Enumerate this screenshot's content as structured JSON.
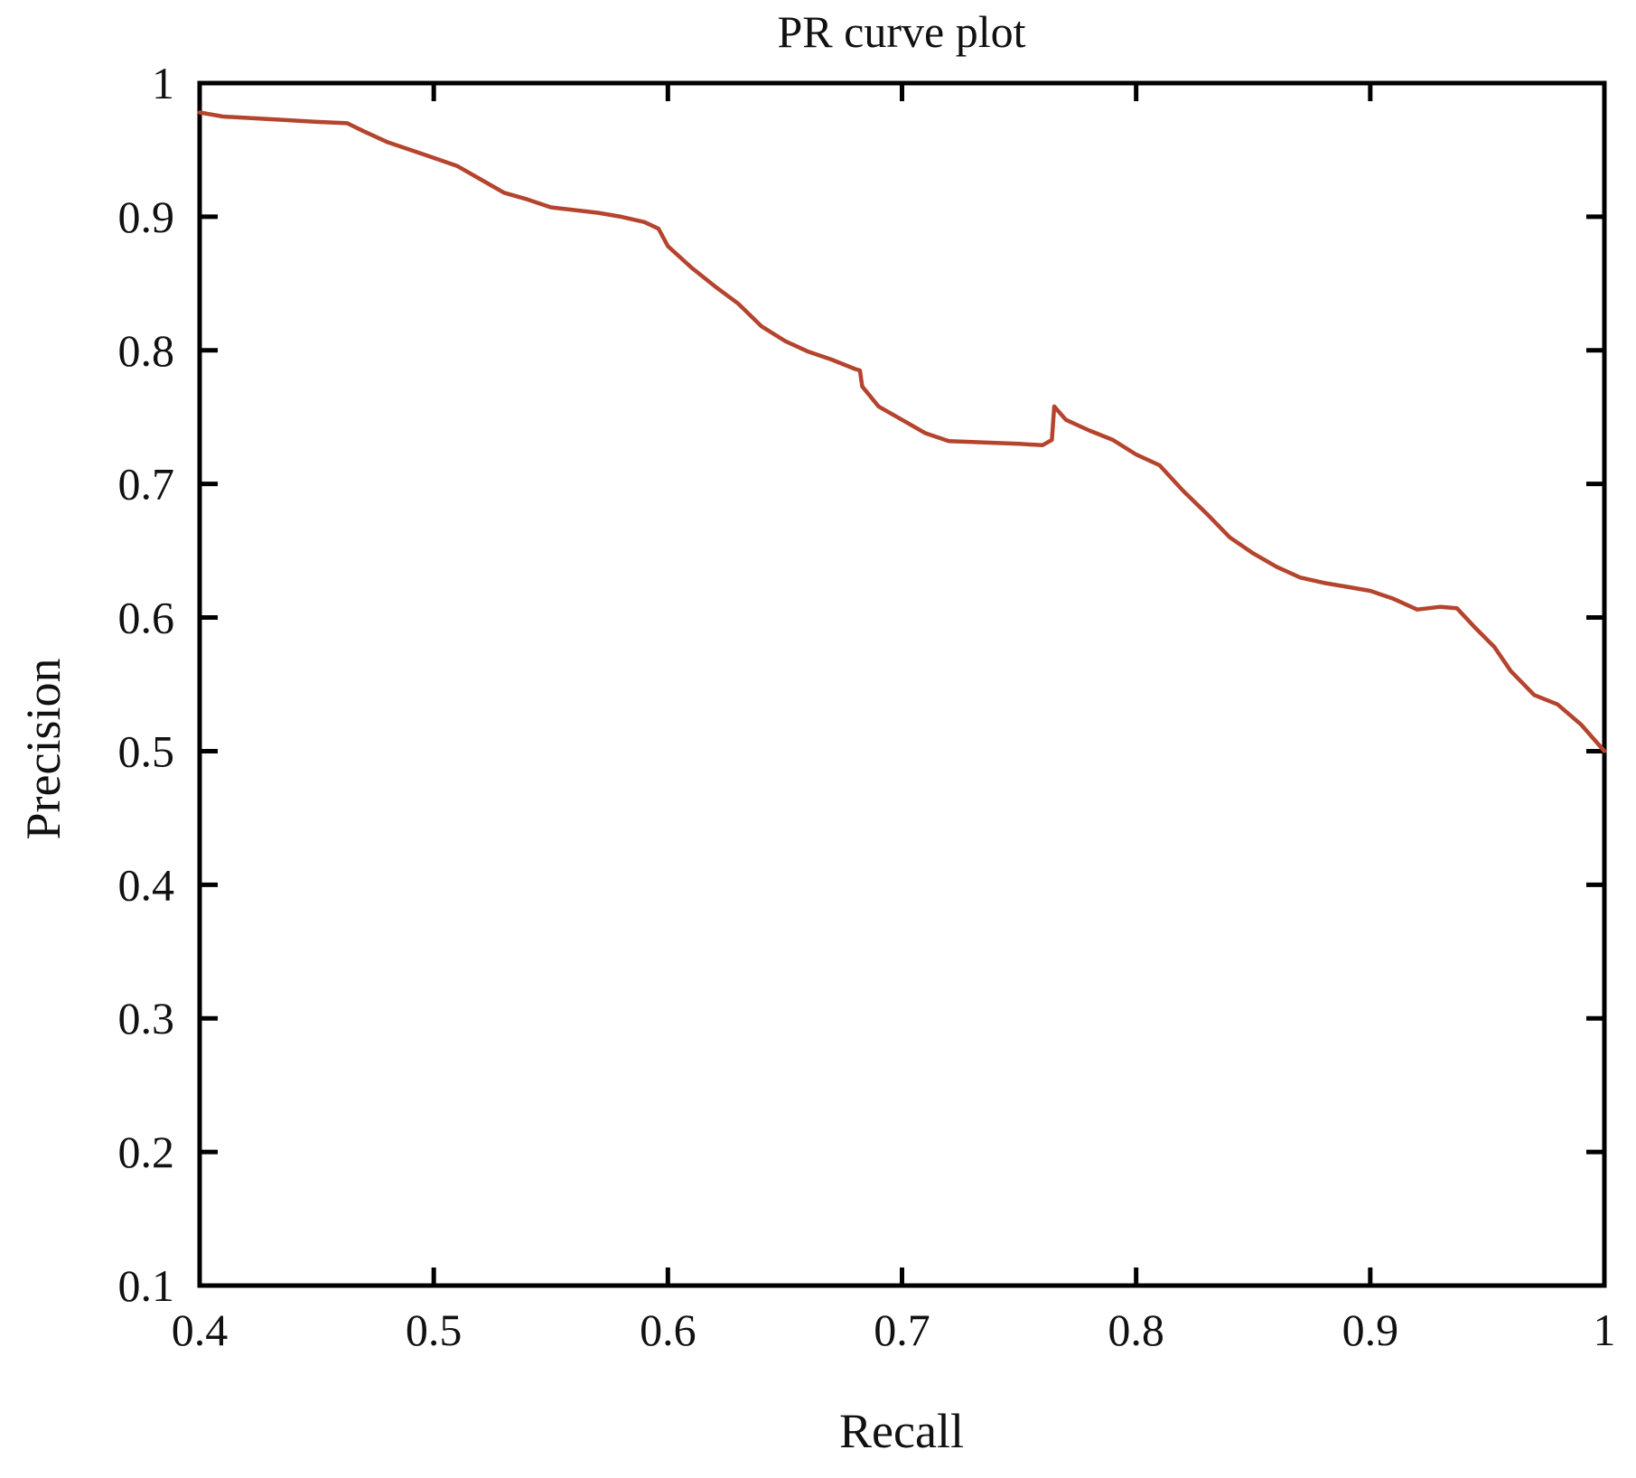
{
  "chart_data": {
    "type": "line",
    "title": "PR curve plot",
    "xlabel": "Recall",
    "ylabel": "Precision",
    "xlim": [
      0.4,
      1.0
    ],
    "ylim": [
      0.1,
      1.0
    ],
    "grid": false,
    "legend": "none",
    "x_ticks": [
      0.4,
      0.5,
      0.6,
      0.7,
      0.8,
      0.9,
      1.0
    ],
    "x_tick_labels": [
      "0.4",
      "0.5",
      "0.6",
      "0.7",
      "0.8",
      "0.9",
      "1"
    ],
    "y_ticks": [
      0.1,
      0.2,
      0.3,
      0.4,
      0.5,
      0.6,
      0.7,
      0.8,
      0.9,
      1.0
    ],
    "y_tick_labels": [
      "0.1",
      "0.2",
      "0.3",
      "0.4",
      "0.5",
      "0.6",
      "0.7",
      "0.8",
      "0.9",
      "1"
    ],
    "series": [
      {
        "color": "#b5442e",
        "x": [
          0.4,
          0.41,
          0.43,
          0.45,
          0.463,
          0.47,
          0.48,
          0.49,
          0.5,
          0.51,
          0.52,
          0.53,
          0.54,
          0.55,
          0.56,
          0.57,
          0.58,
          0.59,
          0.596,
          0.6,
          0.61,
          0.62,
          0.63,
          0.64,
          0.65,
          0.66,
          0.67,
          0.68,
          0.682,
          0.683,
          0.69,
          0.7,
          0.71,
          0.72,
          0.735,
          0.75,
          0.76,
          0.764,
          0.765,
          0.77,
          0.78,
          0.79,
          0.8,
          0.81,
          0.82,
          0.83,
          0.84,
          0.85,
          0.86,
          0.87,
          0.88,
          0.89,
          0.9,
          0.91,
          0.92,
          0.93,
          0.937,
          0.945,
          0.953,
          0.96,
          0.97,
          0.98,
          0.99,
          1.0
        ],
        "y": [
          0.978,
          0.975,
          0.973,
          0.971,
          0.97,
          0.964,
          0.956,
          0.95,
          0.944,
          0.938,
          0.928,
          0.918,
          0.913,
          0.907,
          0.905,
          0.903,
          0.9,
          0.896,
          0.891,
          0.878,
          0.862,
          0.848,
          0.835,
          0.818,
          0.807,
          0.799,
          0.793,
          0.786,
          0.785,
          0.773,
          0.758,
          0.748,
          0.738,
          0.732,
          0.731,
          0.73,
          0.729,
          0.733,
          0.758,
          0.748,
          0.74,
          0.733,
          0.722,
          0.714,
          0.695,
          0.678,
          0.66,
          0.648,
          0.638,
          0.63,
          0.626,
          0.623,
          0.62,
          0.614,
          0.606,
          0.608,
          0.607,
          0.592,
          0.578,
          0.56,
          0.542,
          0.535,
          0.52,
          0.5
        ]
      }
    ]
  }
}
